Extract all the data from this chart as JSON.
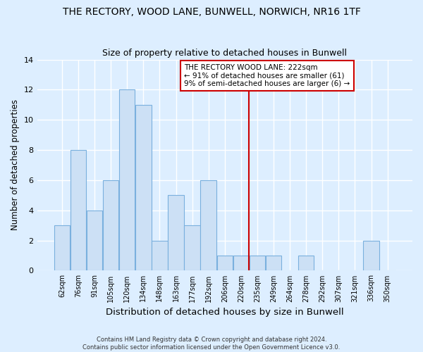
{
  "title": "THE RECTORY, WOOD LANE, BUNWELL, NORWICH, NR16 1TF",
  "subtitle": "Size of property relative to detached houses in Bunwell",
  "xlabel": "Distribution of detached houses by size in Bunwell",
  "ylabel": "Number of detached properties",
  "footer1": "Contains HM Land Registry data © Crown copyright and database right 2024.",
  "footer2": "Contains public sector information licensed under the Open Government Licence v3.0.",
  "bar_labels": [
    "62sqm",
    "76sqm",
    "91sqm",
    "105sqm",
    "120sqm",
    "134sqm",
    "148sqm",
    "163sqm",
    "177sqm",
    "192sqm",
    "206sqm",
    "220sqm",
    "235sqm",
    "249sqm",
    "264sqm",
    "278sqm",
    "292sqm",
    "307sqm",
    "321sqm",
    "336sqm",
    "350sqm"
  ],
  "bar_values": [
    3,
    8,
    4,
    6,
    12,
    11,
    2,
    5,
    3,
    6,
    1,
    1,
    1,
    1,
    0,
    1,
    0,
    0,
    0,
    2,
    0
  ],
  "bar_color": "#cce0f5",
  "bar_edge_color": "#7ab0de",
  "annotation_text_line1": "THE RECTORY WOOD LANE: 222sqm",
  "annotation_text_line2": "← 91% of detached houses are smaller (61)",
  "annotation_text_line3": "9% of semi-detached houses are larger (6) →",
  "annotation_box_color": "#ffffff",
  "annotation_box_edge_color": "#cc0000",
  "vline_color": "#cc0000",
  "vline_x_index": 11.5,
  "ylim": [
    0,
    14
  ],
  "yticks": [
    0,
    2,
    4,
    6,
    8,
    10,
    12,
    14
  ],
  "bg_color": "#ddeeff",
  "plot_bg_color": "#ddeeff",
  "grid_color": "#ffffff",
  "title_fontsize": 10,
  "subtitle_fontsize": 9,
  "ylabel_fontsize": 8.5,
  "xlabel_fontsize": 9.5
}
